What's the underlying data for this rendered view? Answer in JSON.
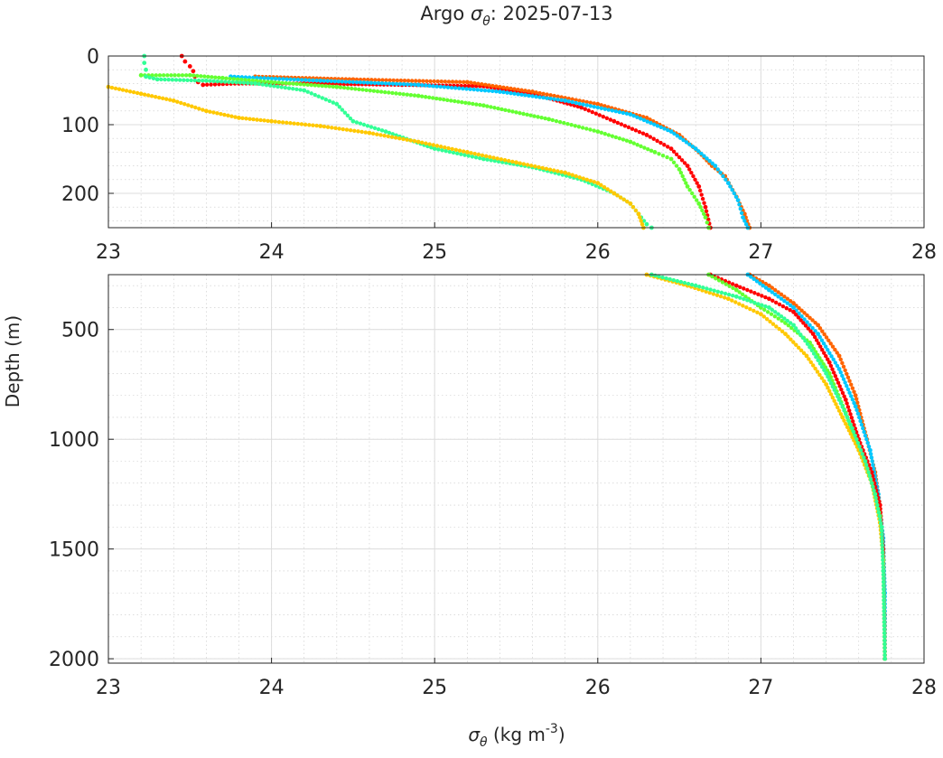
{
  "chart_data": [
    {
      "type": "scatter",
      "panel": "upper",
      "title_prefix": "Argo ",
      "title_symbol": "σ",
      "title_sub": "θ",
      "title_suffix": ": 2025-07-13",
      "xlim": [
        23,
        28
      ],
      "ylim": [
        250,
        0
      ],
      "xticks": [
        "23",
        "24",
        "25",
        "26",
        "27",
        "28"
      ],
      "yticks": [
        "0",
        "100",
        "200"
      ],
      "grid": true,
      "series": [
        {
          "color": "#FF0000",
          "points": [
            [
              23.45,
              0
            ],
            [
              23.47,
              8
            ],
            [
              23.5,
              15
            ],
            [
              23.52,
              22
            ],
            [
              23.53,
              30
            ],
            [
              23.55,
              38
            ],
            [
              23.58,
              42
            ],
            [
              23.8,
              40
            ],
            [
              24.2,
              40
            ],
            [
              24.8,
              42
            ],
            [
              25.3,
              44
            ],
            [
              25.6,
              55
            ],
            [
              25.9,
              75
            ],
            [
              26.1,
              95
            ],
            [
              26.3,
              115
            ],
            [
              26.45,
              135
            ],
            [
              26.55,
              160
            ],
            [
              26.62,
              190
            ],
            [
              26.66,
              220
            ],
            [
              26.69,
              250
            ]
          ]
        },
        {
          "color": "#FF6400",
          "points": [
            [
              23.9,
              30
            ],
            [
              24.5,
              34
            ],
            [
              25.2,
              38
            ],
            [
              25.6,
              52
            ],
            [
              26.0,
              70
            ],
            [
              26.3,
              90
            ],
            [
              26.5,
              115
            ],
            [
              26.62,
              140
            ],
            [
              26.7,
              160
            ],
            [
              26.78,
              175
            ],
            [
              26.85,
              205
            ],
            [
              26.9,
              230
            ],
            [
              26.93,
              250
            ]
          ]
        },
        {
          "color": "#00C8FF",
          "points": [
            [
              23.75,
              30
            ],
            [
              24.3,
              36
            ],
            [
              24.9,
              42
            ],
            [
              25.4,
              52
            ],
            [
              25.8,
              65
            ],
            [
              26.2,
              85
            ],
            [
              26.45,
              110
            ],
            [
              26.6,
              135
            ],
            [
              26.72,
              160
            ],
            [
              26.8,
              185
            ],
            [
              26.86,
              210
            ],
            [
              26.89,
              235
            ],
            [
              26.92,
              250
            ]
          ]
        },
        {
          "color": "#64FF32",
          "points": [
            [
              23.2,
              28
            ],
            [
              23.5,
              28
            ],
            [
              23.7,
              32
            ],
            [
              24.0,
              38
            ],
            [
              24.4,
              45
            ],
            [
              24.9,
              58
            ],
            [
              25.3,
              72
            ],
            [
              25.7,
              92
            ],
            [
              26.0,
              110
            ],
            [
              26.2,
              125
            ],
            [
              26.35,
              140
            ],
            [
              26.45,
              150
            ],
            [
              26.5,
              165
            ],
            [
              26.55,
              190
            ],
            [
              26.62,
              215
            ],
            [
              26.66,
              235
            ],
            [
              26.68,
              250
            ]
          ]
        },
        {
          "color": "#32FF96",
          "points": [
            [
              23.22,
              0
            ],
            [
              23.22,
              10
            ],
            [
              23.23,
              20
            ],
            [
              23.23,
              30
            ],
            [
              23.3,
              34
            ],
            [
              23.6,
              36
            ],
            [
              23.9,
              40
            ],
            [
              24.2,
              50
            ],
            [
              24.4,
              70
            ],
            [
              24.5,
              95
            ],
            [
              24.7,
              110
            ],
            [
              25.0,
              135
            ],
            [
              25.3,
              150
            ],
            [
              25.6,
              162
            ],
            [
              25.9,
              180
            ],
            [
              26.1,
              200
            ],
            [
              26.2,
              215
            ],
            [
              26.25,
              230
            ],
            [
              26.3,
              245
            ],
            [
              26.33,
              250
            ]
          ]
        },
        {
          "color": "#FFC800",
          "points": [
            [
              23.0,
              45
            ],
            [
              23.2,
              55
            ],
            [
              23.4,
              65
            ],
            [
              23.6,
              80
            ],
            [
              23.8,
              90
            ],
            [
              24.0,
              95
            ],
            [
              24.3,
              102
            ],
            [
              24.6,
              112
            ],
            [
              24.9,
              125
            ],
            [
              25.2,
              140
            ],
            [
              25.5,
              155
            ],
            [
              25.8,
              170
            ],
            [
              26.0,
              185
            ],
            [
              26.1,
              200
            ],
            [
              26.2,
              215
            ],
            [
              26.25,
              230
            ],
            [
              26.28,
              250
            ]
          ]
        }
      ]
    },
    {
      "type": "scatter",
      "panel": "lower",
      "xlabel_symbol": "σ",
      "xlabel_sub": "θ",
      "xlabel_unit": " (kg m",
      "xlabel_sup": "-3",
      "xlabel_close": ")",
      "ylabel": "Depth (m)",
      "xlim": [
        23,
        28
      ],
      "ylim": [
        2020,
        250
      ],
      "xticks": [
        "23",
        "24",
        "25",
        "26",
        "27",
        "28"
      ],
      "yticks": [
        "500",
        "1000",
        "1500",
        "2000"
      ],
      "grid": true,
      "series": [
        {
          "color": "#FF6400",
          "points": [
            [
              26.93,
              250
            ],
            [
              27.05,
              300
            ],
            [
              27.2,
              380
            ],
            [
              27.35,
              480
            ],
            [
              27.48,
              620
            ],
            [
              27.58,
              800
            ],
            [
              27.65,
              1000
            ],
            [
              27.7,
              1150
            ],
            [
              27.73,
              1300
            ],
            [
              27.75,
              1500
            ],
            [
              27.76,
              1800
            ],
            [
              27.76,
              2000
            ]
          ]
        },
        {
          "color": "#00C8FF",
          "points": [
            [
              26.92,
              250
            ],
            [
              27.05,
              320
            ],
            [
              27.2,
              400
            ],
            [
              27.35,
              520
            ],
            [
              27.48,
              680
            ],
            [
              27.58,
              850
            ],
            [
              27.67,
              1050
            ],
            [
              27.72,
              1250
            ],
            [
              27.75,
              1450
            ],
            [
              27.76,
              1700
            ],
            [
              27.76,
              2000
            ]
          ]
        },
        {
          "color": "#FF0000",
          "points": [
            [
              26.69,
              250
            ],
            [
              26.85,
              300
            ],
            [
              27.05,
              360
            ],
            [
              27.2,
              420
            ],
            [
              27.32,
              520
            ],
            [
              27.42,
              650
            ],
            [
              27.52,
              820
            ],
            [
              27.6,
              1000
            ],
            [
              27.68,
              1150
            ],
            [
              27.73,
              1300
            ],
            [
              27.75,
              1500
            ],
            [
              27.76,
              2000
            ]
          ]
        },
        {
          "color": "#64FF32",
          "points": [
            [
              26.68,
              250
            ],
            [
              26.85,
              320
            ],
            [
              27.0,
              400
            ],
            [
              27.15,
              470
            ],
            [
              27.3,
              560
            ],
            [
              27.42,
              700
            ],
            [
              27.52,
              880
            ],
            [
              27.6,
              1050
            ],
            [
              27.68,
              1200
            ],
            [
              27.73,
              1350
            ],
            [
              27.75,
              1550
            ],
            [
              27.76,
              2000
            ]
          ]
        },
        {
          "color": "#FFC800",
          "points": [
            [
              26.3,
              250
            ],
            [
              26.55,
              300
            ],
            [
              26.8,
              360
            ],
            [
              27.0,
              430
            ],
            [
              27.15,
              520
            ],
            [
              27.28,
              620
            ],
            [
              27.4,
              750
            ],
            [
              27.5,
              900
            ],
            [
              27.6,
              1050
            ],
            [
              27.68,
              1200
            ],
            [
              27.73,
              1380
            ],
            [
              27.75,
              1550
            ],
            [
              27.76,
              2000
            ]
          ]
        },
        {
          "color": "#32FF96",
          "points": [
            [
              26.33,
              250
            ],
            [
              26.6,
              300
            ],
            [
              26.85,
              350
            ],
            [
              27.05,
              400
            ],
            [
              27.2,
              480
            ],
            [
              27.3,
              580
            ],
            [
              27.4,
              700
            ],
            [
              27.48,
              820
            ],
            [
              27.56,
              950
            ],
            [
              27.64,
              1100
            ],
            [
              27.7,
              1250
            ],
            [
              27.74,
              1400
            ],
            [
              27.75,
              1600
            ],
            [
              27.76,
              2000
            ]
          ]
        }
      ]
    }
  ]
}
